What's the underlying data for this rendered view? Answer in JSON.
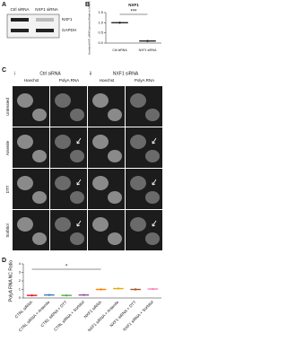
{
  "panel_a": {
    "letter": "A",
    "lanes": [
      "Ctrl siRNA",
      "NXF1 siRNA"
    ],
    "bands": [
      "NXF1",
      "GAPDH"
    ]
  },
  "panel_c": {
    "letter": "C",
    "groups": [
      {
        "numeral": "i",
        "title": "Ctrl siRNA"
      },
      {
        "numeral": "ii",
        "title": "NXF1 siRNA"
      }
    ],
    "channels": [
      "Hoechst",
      "PolyA RNA"
    ],
    "rows": [
      "Untreated",
      "Arsenite",
      "DTT",
      "Sorbitol"
    ]
  },
  "chart_data": [
    {
      "type": "dot",
      "letter": "B",
      "title": "NXF1",
      "ylabel": "Normalized NXF1 mRNA Expression (Relative to GAPDH)",
      "categories": [
        "Ctrl siRNA",
        "NXF1 siRNA"
      ],
      "values": [
        1.0,
        0.1
      ],
      "colors": [
        "#222222",
        "#222222"
      ],
      "ylim": [
        0,
        1.5
      ],
      "yticks": [
        {
          "value": 0,
          "label": "0.0"
        },
        0.5,
        {
          "value": 1,
          "label": "1.0"
        },
        1.5
      ],
      "annotation": "***",
      "compare": [
        0,
        1
      ]
    },
    {
      "type": "dot",
      "letter": "D",
      "ylabel": "PolyA RNA NC Ratio",
      "categories": [
        "CTRL siRNA",
        "CTRL siRNA + Arsenite",
        "CTRL siRNA + DTT",
        "CTRL siRNA + Sorbitol",
        "NXF1 siRNA",
        "NXF1 siRNA + Arsenite",
        "NXF1 siRNA + DTT",
        "NXF1 siRNA + Sorbitol"
      ],
      "values": [
        0.3,
        0.35,
        0.3,
        0.35,
        1.0,
        1.1,
        1.0,
        1.05
      ],
      "colors": [
        "#e41a1c",
        "#377eb8",
        "#4daf4a",
        "#984ea3",
        "#ff7f00",
        "#e6ab02",
        "#a65628",
        "#f781bf"
      ],
      "ylim": [
        0,
        4
      ],
      "yticks": [
        0,
        1,
        2,
        3,
        4
      ],
      "annotation": "*",
      "compare": [
        0,
        4
      ]
    }
  ]
}
